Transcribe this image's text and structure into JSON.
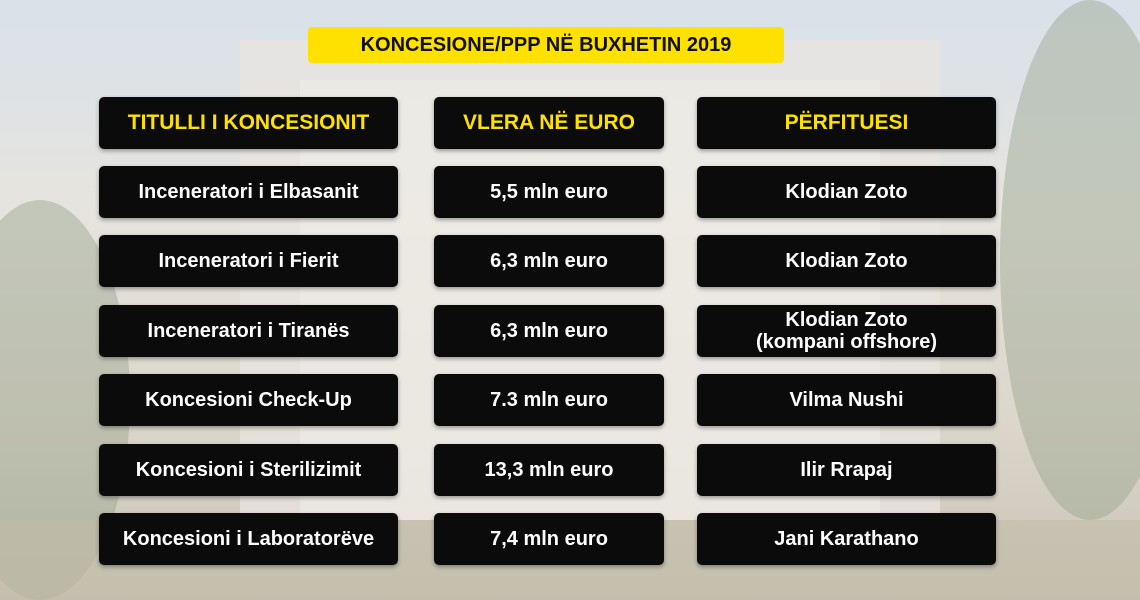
{
  "header": {
    "title": "KONCESIONE/PPP NË BUXHETIN 2019"
  },
  "table": {
    "columns": [
      "TITULLI I KONCESIONIT",
      "VLERA NË EURO",
      "PËRFITUESI"
    ],
    "rows": [
      [
        "Inceneratori i Elbasanit",
        "5,5 mln euro",
        "Klodian Zoto"
      ],
      [
        "Inceneratori i Fierit",
        "6,3 mln euro",
        "Klodian Zoto"
      ],
      [
        "Inceneratori i Tiranës",
        "6,3 mln euro",
        "Klodian Zoto\n(kompani offshore)"
      ],
      [
        "Koncesioni Check-Up",
        "7.3 mln euro",
        "Vilma  Nushi"
      ],
      [
        "Koncesioni i Sterilizimit",
        "13,3 mln euro",
        "Ilir Rrapaj"
      ],
      [
        "Koncesioni i Laboratorëve",
        "7,4 mln euro",
        "Jani Karathano"
      ]
    ]
  }
}
